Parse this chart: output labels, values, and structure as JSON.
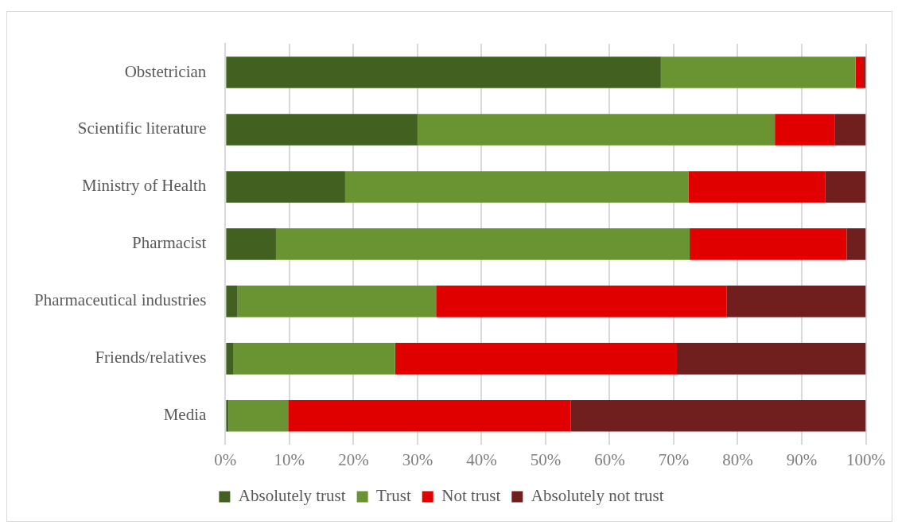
{
  "chart_data": {
    "type": "bar",
    "orientation": "horizontal",
    "stacked": true,
    "categories": [
      "Obstetrician",
      "Scientific literature",
      "Ministry of Health",
      "Pharmacist",
      "Pharmaceutical industries",
      "Friends/relatives",
      "Media"
    ],
    "series": [
      {
        "name": "Absolutely trust",
        "color": "#426020",
        "values": [
          68.0,
          30.0,
          18.7,
          7.9,
          1.9,
          1.2,
          0.5
        ]
      },
      {
        "name": "Trust",
        "color": "#6a9432",
        "values": [
          30.4,
          55.8,
          53.6,
          64.6,
          31.0,
          25.3,
          9.3
        ]
      },
      {
        "name": "Not trust",
        "color": "#e00000",
        "values": [
          1.3,
          9.4,
          21.4,
          24.5,
          45.4,
          44.0,
          44.1
        ]
      },
      {
        "name": "Absolutely not trust",
        "color": "#701e1e",
        "values": [
          0.3,
          4.8,
          6.3,
          3.0,
          21.7,
          29.5,
          46.1
        ]
      }
    ],
    "xlim": [
      0,
      100
    ],
    "xticks": [
      {
        "value": 0,
        "label": "0%"
      },
      {
        "value": 10,
        "label": "10%"
      },
      {
        "value": 20,
        "label": "20%"
      },
      {
        "value": 30,
        "label": "30%"
      },
      {
        "value": 40,
        "label": "40%"
      },
      {
        "value": 50,
        "label": "50%"
      },
      {
        "value": 60,
        "label": "60%"
      },
      {
        "value": 70,
        "label": "70%"
      },
      {
        "value": 80,
        "label": "80%"
      },
      {
        "value": 90,
        "label": "90%"
      },
      {
        "value": 100,
        "label": "100%"
      }
    ],
    "grid": "x",
    "legend": "bottom"
  }
}
